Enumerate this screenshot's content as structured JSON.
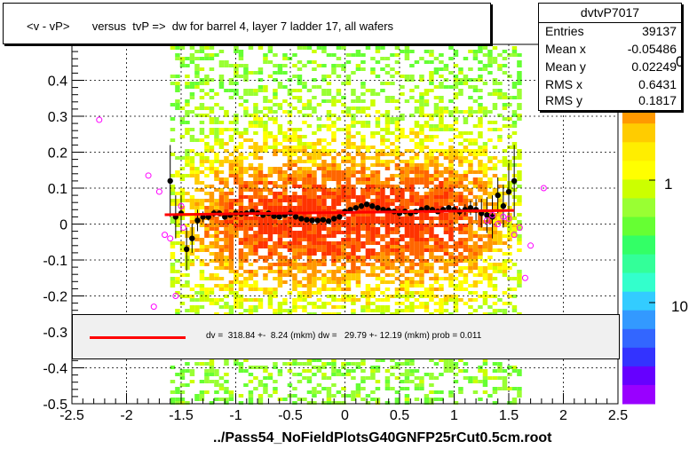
{
  "title": "<v - vP>       versus  tvP =>  dw for barrel 4, layer 7 ladder 17, all wafers",
  "stats": {
    "name": "dvtvP7017",
    "rows": [
      {
        "label": "Entries",
        "value": "39137"
      },
      {
        "label": "Mean x",
        "value": "-0.05486"
      },
      {
        "label": "Mean y",
        "value": "0.02249"
      },
      {
        "label": "RMS x",
        "value": "0.6431"
      },
      {
        "label": "RMS y",
        "value": "0.1817"
      }
    ]
  },
  "legend_text": "dv =  318.84 +-  8.24 (mkm) dw =   29.79 +- 12.19 (mkm) prob = 0.011",
  "footer": "../Pass54_NoFieldPlotsG40GNFP25rCut0.5cm.root",
  "z_labels": [
    "0",
    "1",
    "10"
  ],
  "colors": {
    "fit": "#ff0000",
    "profile": "#000000",
    "open_markers": "#ff00ff"
  },
  "chart_data": {
    "type": "heatmap",
    "title": "<v - vP>       versus  tvP =>  dw for barrel 4, layer 7 ladder 17, all wafers",
    "xlim": [
      -2.5,
      2.5
    ],
    "ylim": [
      -0.5,
      0.5
    ],
    "x_ticks": [
      "-2.5",
      "-2",
      "-1.5",
      "-1",
      "-0.5",
      "0",
      "0.5",
      "1",
      "1.5",
      "2",
      "2.5"
    ],
    "y_ticks": [
      "-0.5",
      "-0.4",
      "-0.3",
      "-0.2",
      "-0.1",
      "0",
      "0.1",
      "0.2",
      "0.3",
      "0.4"
    ],
    "grid": true,
    "z_scale": "log",
    "heatmap_x_range": [
      -1.6,
      1.6
    ],
    "fit_line": {
      "x": [
        -1.65,
        1.55
      ],
      "y": [
        0.026,
        0.038
      ]
    },
    "profile_points": {
      "x": [
        -1.6,
        -1.55,
        -1.5,
        -1.45,
        -1.4,
        -1.35,
        -1.3,
        -1.25,
        -1.2,
        -1.15,
        -1.1,
        -1.05,
        -1.0,
        -0.95,
        -0.9,
        -0.85,
        -0.8,
        -0.75,
        -0.7,
        -0.65,
        -0.6,
        -0.55,
        -0.5,
        -0.45,
        -0.4,
        -0.35,
        -0.3,
        -0.25,
        -0.2,
        -0.15,
        -0.1,
        -0.05,
        0.0,
        0.05,
        0.1,
        0.15,
        0.2,
        0.25,
        0.3,
        0.35,
        0.4,
        0.45,
        0.5,
        0.55,
        0.6,
        0.65,
        0.7,
        0.75,
        0.8,
        0.85,
        0.9,
        0.95,
        1.0,
        1.05,
        1.1,
        1.15,
        1.2,
        1.25,
        1.3,
        1.35,
        1.4,
        1.45,
        1.5,
        1.55
      ],
      "y": [
        0.12,
        0.02,
        0.03,
        -0.07,
        -0.04,
        0.01,
        0.02,
        0.02,
        0.03,
        0.03,
        0.02,
        0.025,
        0.03,
        0.028,
        0.03,
        0.035,
        0.03,
        0.025,
        0.03,
        0.022,
        0.02,
        0.025,
        0.03,
        0.02,
        0.015,
        0.012,
        0.01,
        0.01,
        0.012,
        0.008,
        0.015,
        0.02,
        0.035,
        0.04,
        0.045,
        0.05,
        0.055,
        0.05,
        0.045,
        0.04,
        0.038,
        0.035,
        0.03,
        0.035,
        0.03,
        0.035,
        0.04,
        0.045,
        0.04,
        0.035,
        0.04,
        0.045,
        0.04,
        0.035,
        0.04,
        0.045,
        0.04,
        0.03,
        0.025,
        0.02,
        0.08,
        0.05,
        0.09,
        0.12
      ],
      "err": [
        0.1,
        0.06,
        0.05,
        0.06,
        0.04,
        0.03,
        0.015,
        0.01,
        0.01,
        0.008,
        0.007,
        0.006,
        0.006,
        0.005,
        0.005,
        0.005,
        0.005,
        0.005,
        0.005,
        0.005,
        0.005,
        0.005,
        0.005,
        0.005,
        0.005,
        0.005,
        0.005,
        0.005,
        0.005,
        0.005,
        0.005,
        0.005,
        0.005,
        0.005,
        0.005,
        0.005,
        0.005,
        0.005,
        0.005,
        0.005,
        0.005,
        0.005,
        0.005,
        0.005,
        0.005,
        0.005,
        0.005,
        0.005,
        0.006,
        0.006,
        0.007,
        0.008,
        0.01,
        0.012,
        0.015,
        0.02,
        0.03,
        0.04,
        0.05,
        0.06,
        0.05,
        0.06,
        0.08,
        0.1
      ]
    },
    "open_markers": {
      "x": [
        -2.25,
        -1.8,
        -1.75,
        -1.7,
        -1.65,
        -1.6,
        -1.55,
        -1.5,
        -1.48,
        1.3,
        1.35,
        1.4,
        1.45,
        1.5,
        1.55,
        1.6,
        1.65,
        1.7,
        1.82
      ],
      "y": [
        0.29,
        0.135,
        -0.23,
        0.09,
        -0.03,
        -0.04,
        -0.2,
        0.05,
        -0.01,
        0.01,
        0.025,
        0.0,
        0.02,
        0.015,
        -0.03,
        -0.01,
        -0.15,
        -0.06,
        0.1
      ]
    }
  }
}
